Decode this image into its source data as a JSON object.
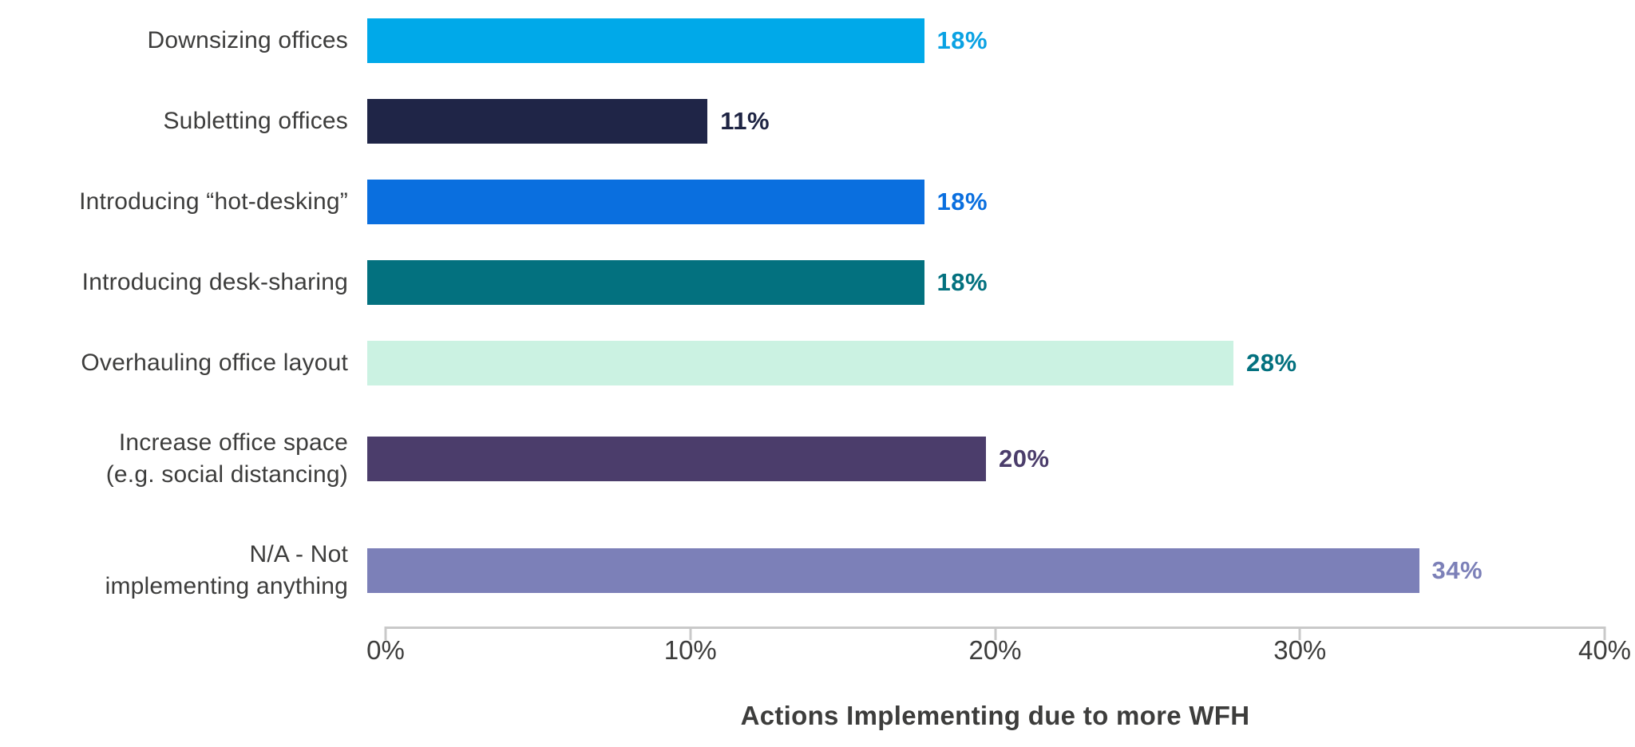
{
  "chart_data": {
    "type": "bar",
    "orientation": "horizontal",
    "title": "",
    "xlabel": "Actions Implementing due to more WFH",
    "ylabel": "",
    "xlim": [
      0,
      40
    ],
    "x_ticks": [
      "0%",
      "10%",
      "20%",
      "30%",
      "40%"
    ],
    "x_tick_values": [
      0,
      10,
      20,
      30,
      40
    ],
    "grid": false,
    "legend": false,
    "axis_color": "#C9C9C9",
    "text_color": "#3D3D3C",
    "categories": [
      {
        "label_lines": [
          "Downsizing offices"
        ],
        "value": 18,
        "value_label": "18%",
        "bar_color": "#00A9E9",
        "value_color": "#0AA2E3"
      },
      {
        "label_lines": [
          "Subletting offices"
        ],
        "value": 11,
        "value_label": "11%",
        "bar_color": "#1F2547",
        "value_color": "#1E2443"
      },
      {
        "label_lines": [
          "Introducing “hot-desking”"
        ],
        "value": 18,
        "value_label": "18%",
        "bar_color": "#0A6FDF",
        "value_color": "#0A6FDF"
      },
      {
        "label_lines": [
          "Introducing desk-sharing"
        ],
        "value": 18,
        "value_label": "18%",
        "bar_color": "#03717F",
        "value_color": "#03717F"
      },
      {
        "label_lines": [
          "Overhauling office layout"
        ],
        "value": 28,
        "value_label": "28%",
        "bar_color": "#CBF2E2",
        "value_color": "#03717F"
      },
      {
        "label_lines": [
          "Increase office space",
          "(e.g. social distancing)"
        ],
        "value": 20,
        "value_label": "20%",
        "bar_color": "#4B3D6B",
        "value_color": "#4B3D6B"
      },
      {
        "label_lines": [
          "N/A - Not",
          "implementing anything"
        ],
        "value": 34,
        "value_label": "34%",
        "bar_color": "#7C80B8",
        "value_color": "#7C80B8"
      }
    ]
  }
}
